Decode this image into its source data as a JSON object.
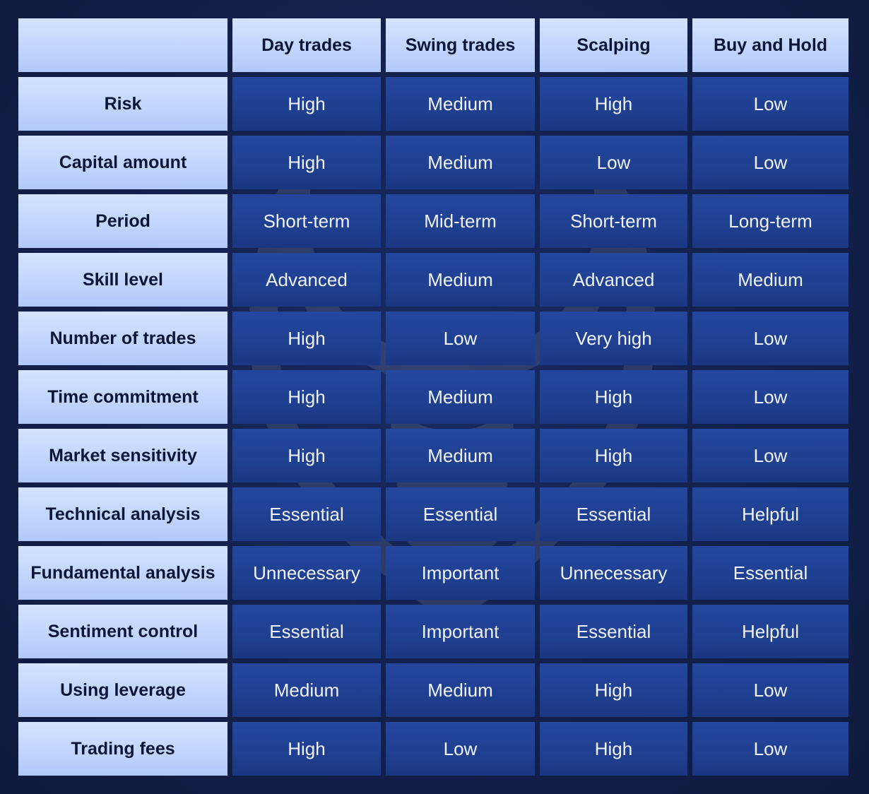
{
  "table": {
    "corner": "",
    "columns": [
      "Day trades",
      "Swing trades",
      "Scalping",
      "Buy and Hold"
    ],
    "rows": [
      {
        "label": "Risk",
        "values": [
          "High",
          "Medium",
          "High",
          "Low"
        ]
      },
      {
        "label": "Capital amount",
        "values": [
          "High",
          "Medium",
          "Low",
          "Low"
        ]
      },
      {
        "label": "Period",
        "values": [
          "Short-term",
          "Mid-term",
          "Short-term",
          "Long-term"
        ]
      },
      {
        "label": "Skill level",
        "values": [
          "Advanced",
          "Medium",
          "Advanced",
          "Medium"
        ]
      },
      {
        "label": "Number of trades",
        "values": [
          "High",
          "Low",
          "Very high",
          "Low"
        ]
      },
      {
        "label": "Time commitment",
        "values": [
          "High",
          "Medium",
          "High",
          "Low"
        ]
      },
      {
        "label": "Market sensitivity",
        "values": [
          "High",
          "Medium",
          "High",
          "Low"
        ]
      },
      {
        "label": "Technical analysis",
        "values": [
          "Essential",
          "Essential",
          "Essential",
          "Helpful"
        ]
      },
      {
        "label": "Fundamental analysis",
        "values": [
          "Unnecessary",
          "Important",
          "Unnecessary",
          "Essential"
        ]
      },
      {
        "label": "Sentiment control",
        "values": [
          "Essential",
          "Important",
          "Essential",
          "Helpful"
        ]
      },
      {
        "label": "Using leverage",
        "values": [
          "Medium",
          "Medium",
          "High",
          "Low"
        ]
      },
      {
        "label": "Trading fees",
        "values": [
          "High",
          "Low",
          "High",
          "Low"
        ]
      }
    ]
  },
  "colors": {
    "background": "#0f1c41",
    "header_cell": "#c6d8fd",
    "data_cell": "#1f3f90",
    "header_text": "#0b1536",
    "data_text": "#eef3ff"
  },
  "icons": {
    "watermark": "bull-logo-icon"
  }
}
